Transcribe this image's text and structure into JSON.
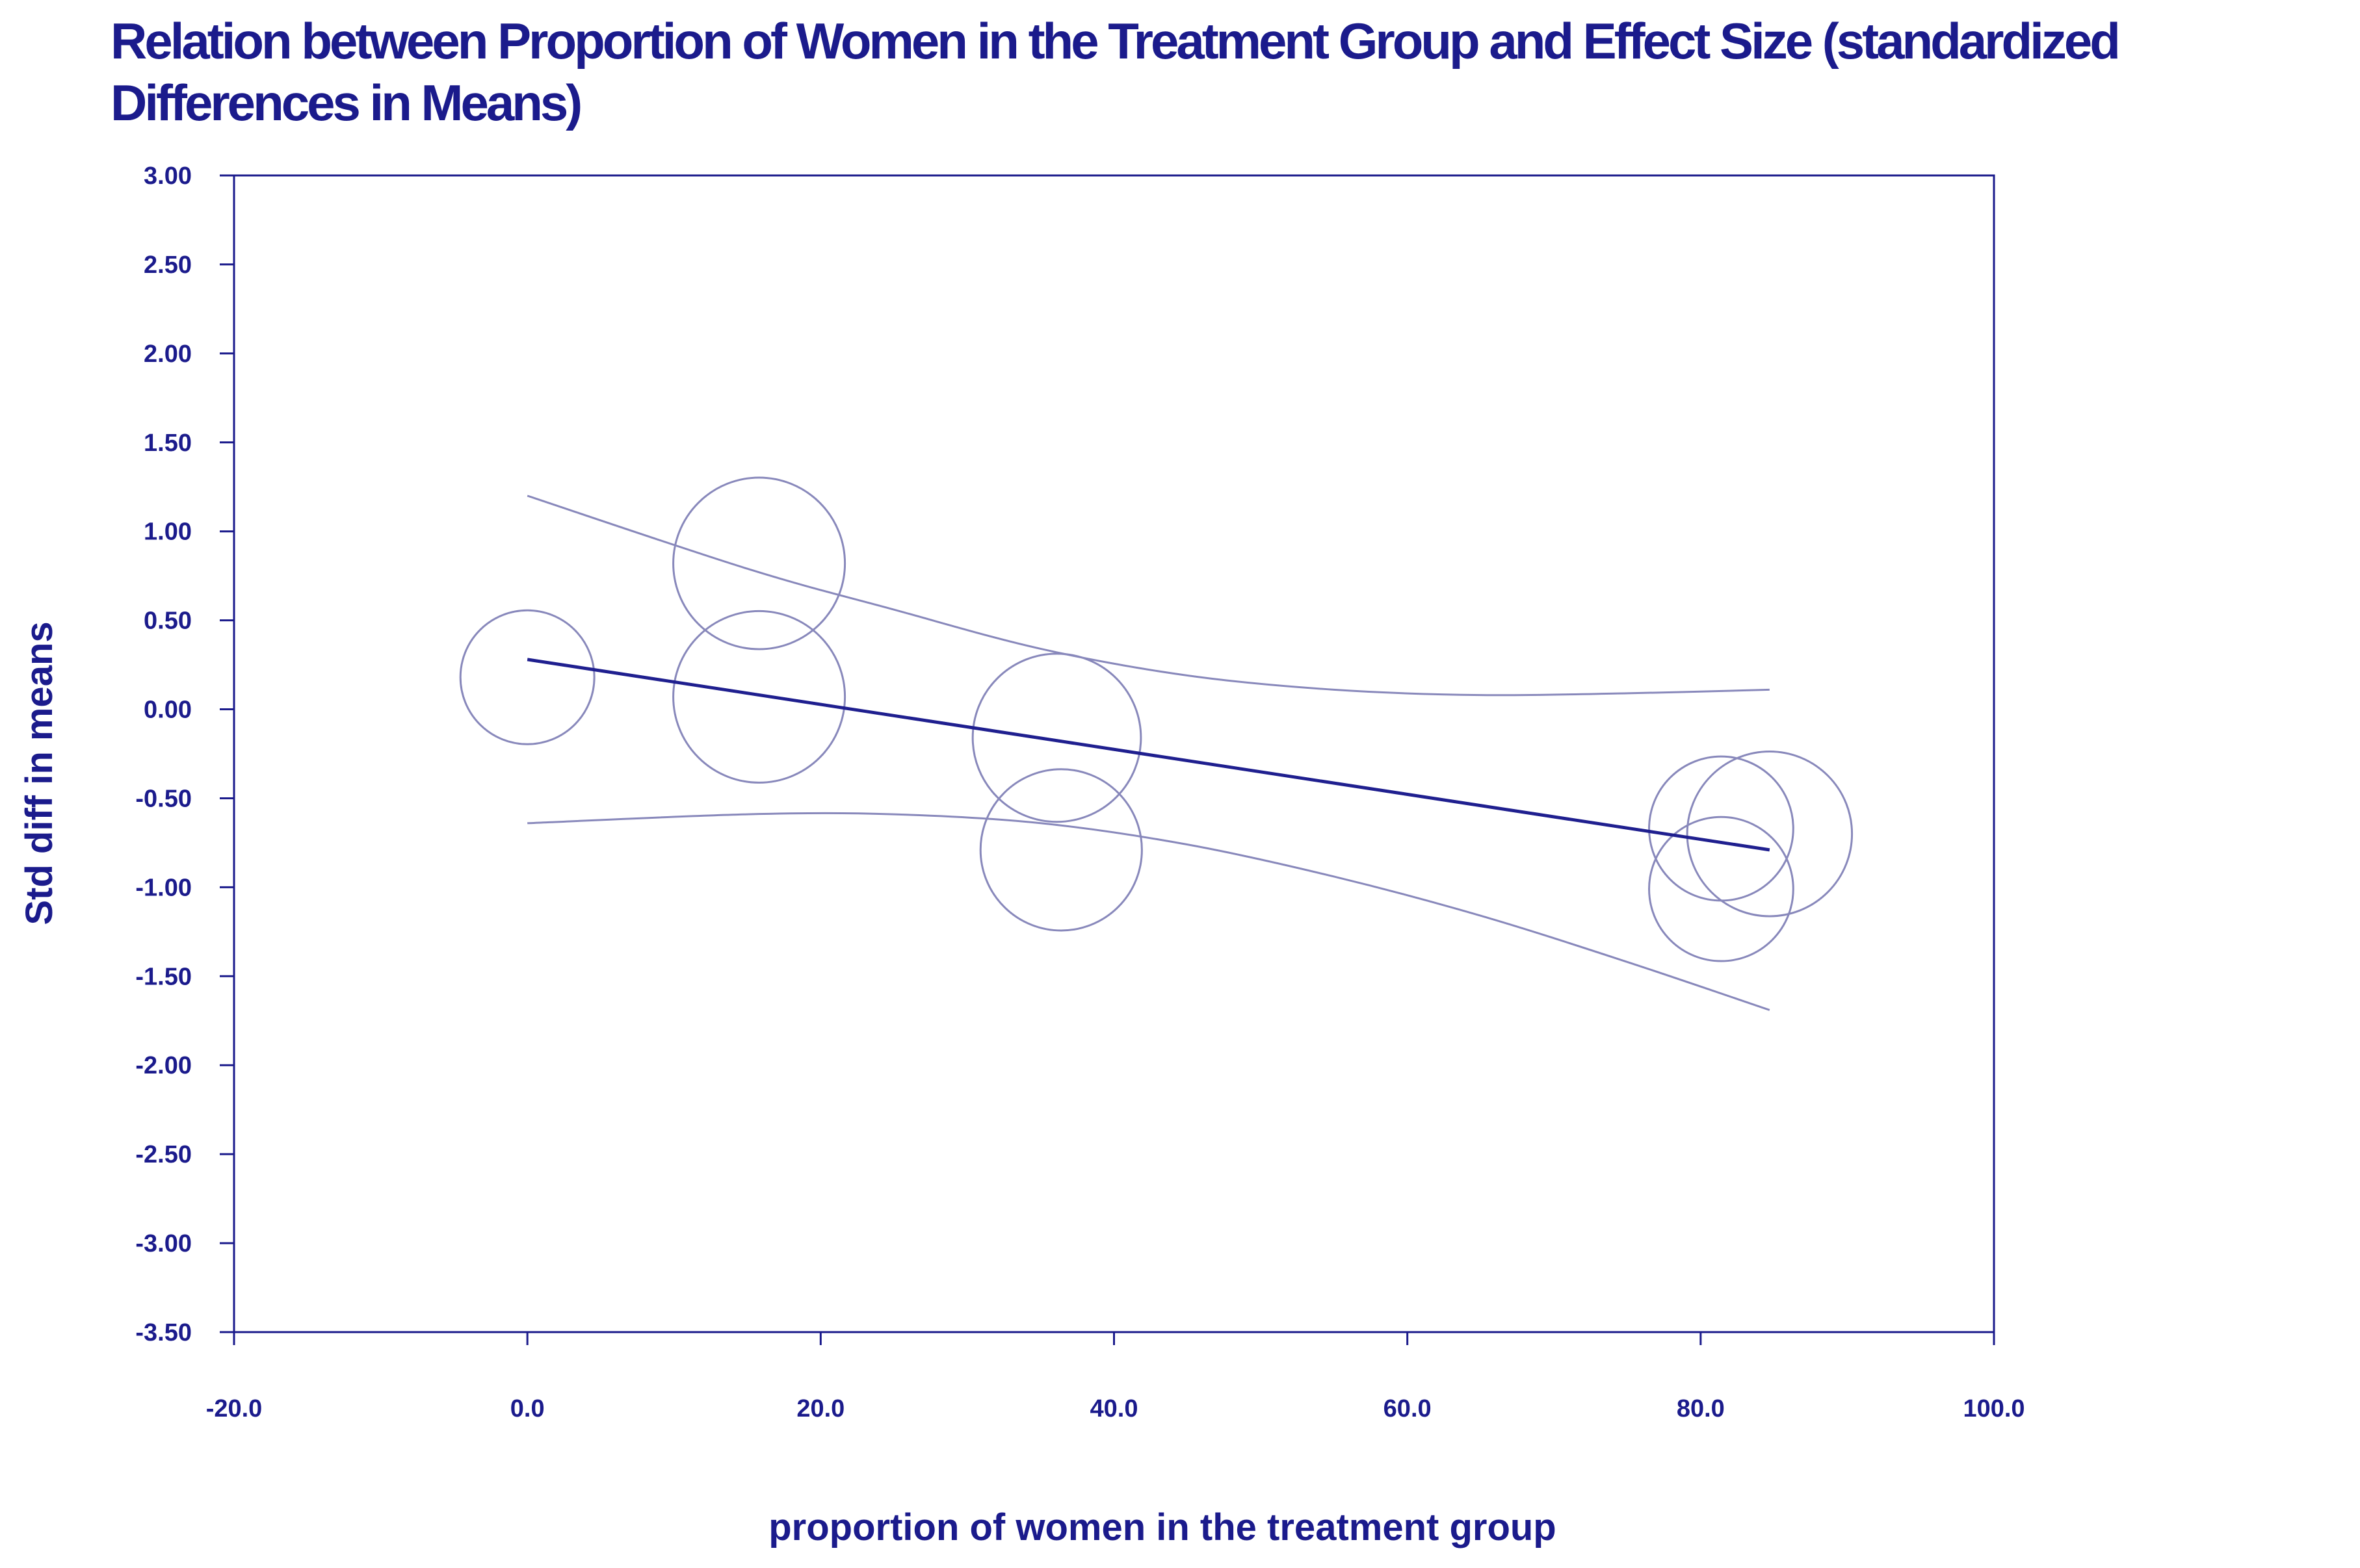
{
  "chart_data": {
    "type": "scatter",
    "title": "Relation between Proportion of Women in the Treatment Group and Effect Size (standardized Differences in Means)",
    "xlabel": "proportion of women in the treatment group",
    "ylabel": "Std diff in means",
    "xlim": [
      -20,
      100
    ],
    "ylim": [
      -3.5,
      3.0
    ],
    "x_ticks": [
      -20,
      0,
      20,
      40,
      60,
      80,
      100
    ],
    "x_tick_labels": [
      "-20.0",
      "0.0",
      "20.0",
      "40.0",
      "60.0",
      "80.0",
      "100.0"
    ],
    "y_ticks": [
      3.0,
      2.5,
      2.0,
      1.5,
      1.0,
      0.5,
      0.0,
      -0.5,
      -1.0,
      -1.5,
      -2.0,
      -2.5,
      -3.0,
      -3.5
    ],
    "y_tick_labels": [
      "3.00",
      "2.50",
      "2.00",
      "1.50",
      "1.00",
      "0.50",
      "0.00",
      "-0.50",
      "-1.00",
      "-1.50",
      "-2.00",
      "-2.50",
      "-3.00",
      "-3.50"
    ],
    "grid": false,
    "legend": false,
    "points": [
      {
        "x": 0.0,
        "y": 0.18,
        "weight": 0.78
      },
      {
        "x": 15.8,
        "y": 0.82,
        "weight": 1.0
      },
      {
        "x": 15.8,
        "y": 0.07,
        "weight": 1.0
      },
      {
        "x": 36.1,
        "y": -0.16,
        "weight": 0.98
      },
      {
        "x": 36.4,
        "y": -0.79,
        "weight": 0.94
      },
      {
        "x": 81.4,
        "y": -0.67,
        "weight": 0.84
      },
      {
        "x": 81.4,
        "y": -1.01,
        "weight": 0.84
      },
      {
        "x": 84.7,
        "y": -0.7,
        "weight": 0.96
      }
    ],
    "regression_line": {
      "x": [
        0.0,
        84.7
      ],
      "y": [
        0.28,
        -0.79
      ]
    },
    "confidence_band": {
      "upper": {
        "x": [
          0,
          15,
          25,
          35,
          45,
          55,
          65,
          75,
          84.7
        ],
        "y": [
          1.2,
          0.79,
          0.56,
          0.34,
          0.19,
          0.11,
          0.08,
          0.09,
          0.11
        ]
      },
      "lower": {
        "x": [
          0,
          15,
          25,
          35,
          45,
          55,
          65,
          75,
          84.7
        ],
        "y": [
          -0.64,
          -0.59,
          -0.59,
          -0.64,
          -0.76,
          -0.94,
          -1.16,
          -1.42,
          -1.69
        ]
      }
    },
    "colors": {
      "text": "#1b1b8c",
      "axis": "#1b1b8c",
      "regression": "#1f1f8f",
      "bubble": "#8888bb",
      "band": "#8888bb",
      "background": "#ffffff"
    }
  }
}
